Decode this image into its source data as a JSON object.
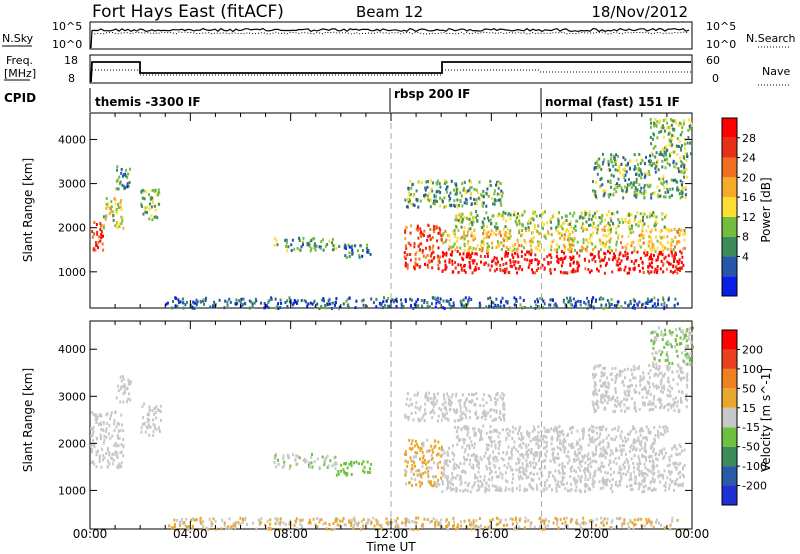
{
  "header": {
    "radar": "Fort Hays East (fitACF)",
    "beam": "Beam 12",
    "date": "18/Nov/2012"
  },
  "side_labels": {
    "nsky": "N.Sky",
    "freq_line1": "Freq.",
    "freq_line2": "[MHz]",
    "cpid": "CPID",
    "nsearch": "N.Search",
    "nave": "Nave"
  },
  "noise_panel": {
    "left_ticks": [
      "10^5",
      "10^0"
    ],
    "right_ticks": [
      "10^5",
      "10^0"
    ]
  },
  "freq_panel": {
    "left_ticks": [
      "18",
      "8"
    ],
    "right_ticks": [
      "60",
      "0"
    ]
  },
  "cpid_panel": {
    "segments": [
      {
        "label": "themis -3300 IF",
        "start_hour": 0
      },
      {
        "label": "rbsp 200 IF",
        "start_hour": 12
      },
      {
        "label": "normal (fast) 151 IF",
        "start_hour": 18
      }
    ]
  },
  "colors": {
    "power_scale": [
      "#0a1ee6",
      "#2857aa",
      "#3d8b5a",
      "#74bd3c",
      "#ffdd33",
      "#f7a928",
      "#f07020",
      "#e63018",
      "#ff0000"
    ],
    "velocity_scale": [
      "#2030d0",
      "#2a5aa8",
      "#3c8c58",
      "#70c040",
      "#c8c8c8",
      "#e8a830",
      "#f08020",
      "#e84020",
      "#ff0000"
    ]
  },
  "chart_data": [
    {
      "type": "heatmap",
      "title": "",
      "xlabel": "Time UT",
      "ylabel": "Slant Range [km]",
      "x_ticks": [
        "00:00",
        "04:00",
        "08:00",
        "12:00",
        "16:00",
        "20:00",
        "00:00"
      ],
      "y_ticks": [
        1000,
        2000,
        3000,
        4000
      ],
      "xlim_hours": [
        0,
        24
      ],
      "ylim_km": [
        180,
        4600
      ],
      "colorbar": {
        "label": "Power [dB]",
        "ticks": [
          "28",
          "24",
          "20",
          "16",
          "12",
          "8",
          "4"
        ],
        "range": [
          0,
          30
        ]
      },
      "scatter_regions": [
        {
          "t0": 0.0,
          "t1": 0.5,
          "r0": 1500,
          "r1": 2200,
          "level": 25
        },
        {
          "t0": 0.5,
          "t1": 1.3,
          "r0": 2000,
          "r1": 2700,
          "level": 14
        },
        {
          "t0": 1.0,
          "t1": 1.6,
          "r0": 2900,
          "r1": 3500,
          "level": 8
        },
        {
          "t0": 2.0,
          "t1": 2.8,
          "r0": 2200,
          "r1": 2900,
          "level": 12
        },
        {
          "t0": 7.3,
          "t1": 9.8,
          "r0": 1500,
          "r1": 1800,
          "level": 10
        },
        {
          "t0": 9.8,
          "t1": 11.2,
          "r0": 1350,
          "r1": 1650,
          "level": 7
        },
        {
          "t0": 12.5,
          "t1": 14.0,
          "r0": 1100,
          "r1": 2100,
          "level": 24
        },
        {
          "t0": 14.0,
          "t1": 23.7,
          "r0": 1000,
          "r1": 1500,
          "level": 28
        },
        {
          "t0": 14.0,
          "t1": 23.7,
          "r0": 1500,
          "r1": 2000,
          "level": 16
        },
        {
          "t0": 14.5,
          "t1": 23.0,
          "r0": 2000,
          "r1": 2400,
          "level": 12
        },
        {
          "t0": 12.5,
          "t1": 16.5,
          "r0": 2500,
          "r1": 3100,
          "level": 10
        },
        {
          "t0": 20.0,
          "t1": 23.8,
          "r0": 2700,
          "r1": 3700,
          "level": 10
        },
        {
          "t0": 22.3,
          "t1": 24.0,
          "r0": 3700,
          "r1": 4500,
          "level": 11
        },
        {
          "t0": 3.0,
          "t1": 23.5,
          "r0": 200,
          "r1": 450,
          "level": 6
        }
      ]
    },
    {
      "type": "heatmap",
      "title": "",
      "xlabel": "Time UT",
      "ylabel": "Slant Range [km]",
      "x_ticks": [
        "00:00",
        "04:00",
        "08:00",
        "12:00",
        "16:00",
        "20:00",
        "00:00"
      ],
      "y_ticks": [
        1000,
        2000,
        3000,
        4000
      ],
      "xlim_hours": [
        0,
        24
      ],
      "ylim_km": [
        180,
        4600
      ],
      "colorbar": {
        "label": "Velocity [m s^-1]",
        "ticks": [
          "200",
          "100",
          "50",
          "15",
          "-15",
          "-50",
          "-100",
          "-200"
        ],
        "range": [
          -250,
          250
        ]
      },
      "scatter_regions": [
        {
          "t0": 0.0,
          "t1": 1.3,
          "r0": 1500,
          "r1": 2700,
          "level": 0
        },
        {
          "t0": 1.0,
          "t1": 1.6,
          "r0": 2900,
          "r1": 3500,
          "level": 0
        },
        {
          "t0": 2.0,
          "t1": 2.8,
          "r0": 2200,
          "r1": 2900,
          "level": 0
        },
        {
          "t0": 7.3,
          "t1": 9.8,
          "r0": 1500,
          "r1": 1800,
          "level": -20
        },
        {
          "t0": 9.8,
          "t1": 11.2,
          "r0": 1350,
          "r1": 1650,
          "level": -60
        },
        {
          "t0": 12.5,
          "t1": 14.0,
          "r0": 1100,
          "r1": 2100,
          "level": 40
        },
        {
          "t0": 14.0,
          "t1": 23.7,
          "r0": 1000,
          "r1": 2000,
          "level": 0
        },
        {
          "t0": 14.5,
          "t1": 23.0,
          "r0": 2000,
          "r1": 2400,
          "level": 0
        },
        {
          "t0": 12.5,
          "t1": 16.5,
          "r0": 2500,
          "r1": 3100,
          "level": 0
        },
        {
          "t0": 20.0,
          "t1": 23.8,
          "r0": 2700,
          "r1": 3700,
          "level": 0
        },
        {
          "t0": 22.3,
          "t1": 24.0,
          "r0": 3700,
          "r1": 4500,
          "level": -30
        },
        {
          "t0": 3.0,
          "t1": 23.5,
          "r0": 200,
          "r1": 450,
          "level": 30
        }
      ]
    }
  ]
}
